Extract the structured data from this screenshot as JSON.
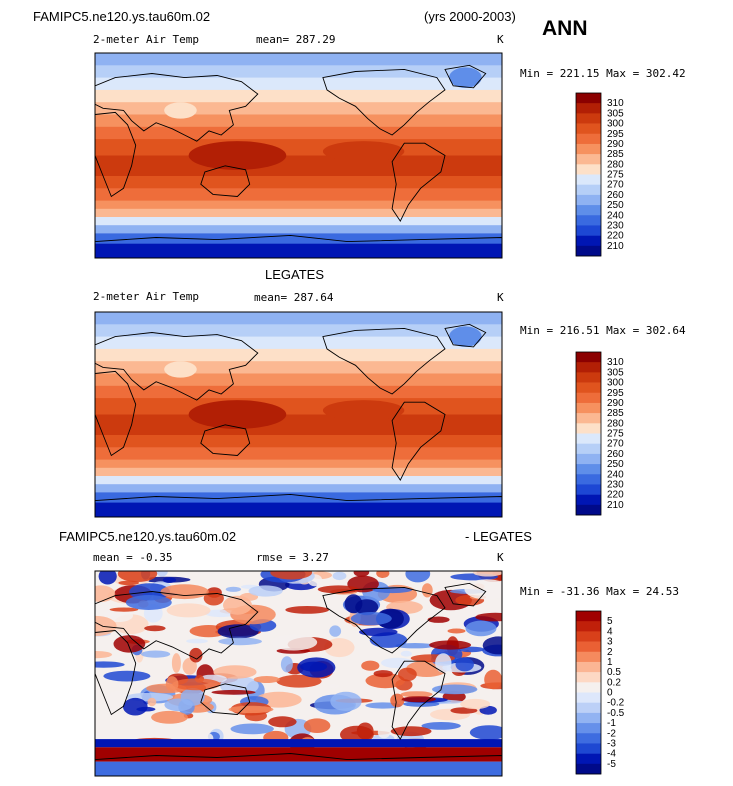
{
  "header": {
    "case_name": "FAMIPC5.ne120.ys.tau60m.02",
    "years": "(yrs 2000-2003)",
    "season": "ANN"
  },
  "panels": [
    {
      "title": "",
      "left_label": "2-meter Air Temp",
      "center_label": "mean= 287.29",
      "units": "K",
      "minmax": "Min = 221.15 Max = 302.42"
    },
    {
      "title": "LEGATES",
      "left_label": "2-meter Air Temp",
      "center_label": "mean= 287.64",
      "units": "K",
      "minmax": "Min = 216.51 Max = 302.64"
    },
    {
      "title_left": "FAMIPC5.ne120.ys.tau60m.02",
      "title_right": "- LEGATES",
      "left_label": "mean =   -0.35",
      "center_label": "rmse =    3.27",
      "units": "K",
      "minmax": "Min = -31.36 Max =  24.53"
    }
  ],
  "chart_data": [
    {
      "type": "heatmap",
      "description_type": "global contour map",
      "field": "2-meter Air Temp",
      "units": "K",
      "mean": 287.29,
      "min": 221.15,
      "max": 302.42,
      "colorbar_levels": [
        "310",
        "305",
        "300",
        "295",
        "290",
        "285",
        "280",
        "275",
        "270",
        "260",
        "250",
        "240",
        "230",
        "220",
        "210"
      ],
      "colorbar_colors": [
        "#8b0000",
        "#b21f05",
        "#cc3a0e",
        "#e0541e",
        "#ee6d3a",
        "#f6915f",
        "#fbb892",
        "#fde0c8",
        "#dbe8fb",
        "#b6cff7",
        "#8fb2f2",
        "#5f8ee9",
        "#3a6ae0",
        "#1d47d4",
        "#0016b4",
        "#000a8a"
      ]
    },
    {
      "type": "heatmap",
      "description_type": "global contour map",
      "field": "2-meter Air Temp",
      "units": "K",
      "mean": 287.64,
      "min": 216.51,
      "max": 302.64,
      "colorbar_levels": [
        "310",
        "305",
        "300",
        "295",
        "290",
        "285",
        "280",
        "275",
        "270",
        "260",
        "250",
        "240",
        "230",
        "220",
        "210"
      ],
      "colorbar_colors": [
        "#8b0000",
        "#b21f05",
        "#cc3a0e",
        "#e0541e",
        "#ee6d3a",
        "#f6915f",
        "#fbb892",
        "#fde0c8",
        "#dbe8fb",
        "#b6cff7",
        "#8fb2f2",
        "#5f8ee9",
        "#3a6ae0",
        "#1d47d4",
        "#0016b4",
        "#000a8a"
      ]
    },
    {
      "type": "heatmap",
      "description_type": "global contour map (difference)",
      "units": "K",
      "mean": -0.35,
      "rmse": 3.27,
      "min": -31.36,
      "max": 24.53,
      "colorbar_levels": [
        "5",
        "4",
        "3",
        "2",
        "1",
        "0.5",
        "0.2",
        "0",
        "-0.2",
        "-0.5",
        "-1",
        "-2",
        "-3",
        "-4",
        "-5"
      ],
      "colorbar_colors": [
        "#a00000",
        "#c0200a",
        "#d8401a",
        "#ea6034",
        "#f58a5e",
        "#fbb594",
        "#fdd8c4",
        "#f5f0ee",
        "#dde7fb",
        "#bcd0f7",
        "#92b3f2",
        "#6690ea",
        "#3e6ce0",
        "#1e48d2",
        "#0016b4",
        "#000a8a"
      ]
    }
  ]
}
